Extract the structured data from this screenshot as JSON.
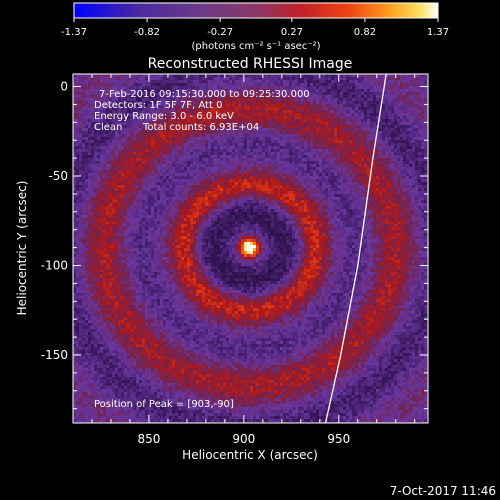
{
  "colorbar": {
    "min": -1.37,
    "max": 1.37,
    "tick_values": [
      -1.37,
      -0.82,
      -0.27,
      0.27,
      0.82,
      1.37
    ],
    "tick_labels": [
      "-1.37",
      "-0.82",
      "-0.27",
      "0.27",
      "0.82",
      "1.37"
    ],
    "unit_label": "(photons cm⁻² s⁻¹ asec⁻²)"
  },
  "chart_data": {
    "type": "heatmap",
    "title": "Reconstructed RHESSI Image",
    "xlabel": "Heliocentric X (arcsec)",
    "ylabel": "Heliocentric Y (arcsec)",
    "xlim": [
      810,
      997
    ],
    "ylim": [
      -188,
      7
    ],
    "x_ticks": [
      850,
      900,
      950
    ],
    "x_tick_labels": [
      "850",
      "900",
      "950"
    ],
    "y_ticks": [
      0,
      -50,
      -100,
      -150
    ],
    "y_tick_labels": [
      "0",
      "-50",
      "-100",
      "-150"
    ],
    "grid": false,
    "colormap": "RHESSI color table (blue-purple-red-orange-yellow-white)",
    "peak": {
      "x": 903,
      "y": -90
    },
    "limb_line_color": "#ffffff",
    "annotations": {
      "time_range": "7-Feb-2016 09:15:30.000 to 09:25:30.000",
      "detectors": "Detectors: 1F 5F 7F, Att 0",
      "energy_range": "Energy Range: 3.0 - 6.0 keV",
      "method": "Clean",
      "total_counts": "Total counts: 6.93E+04",
      "peak_position": "Position of Peak = [903,-90]"
    }
  },
  "footer": {
    "timestamp": "7-Oct-2017 11:46"
  }
}
